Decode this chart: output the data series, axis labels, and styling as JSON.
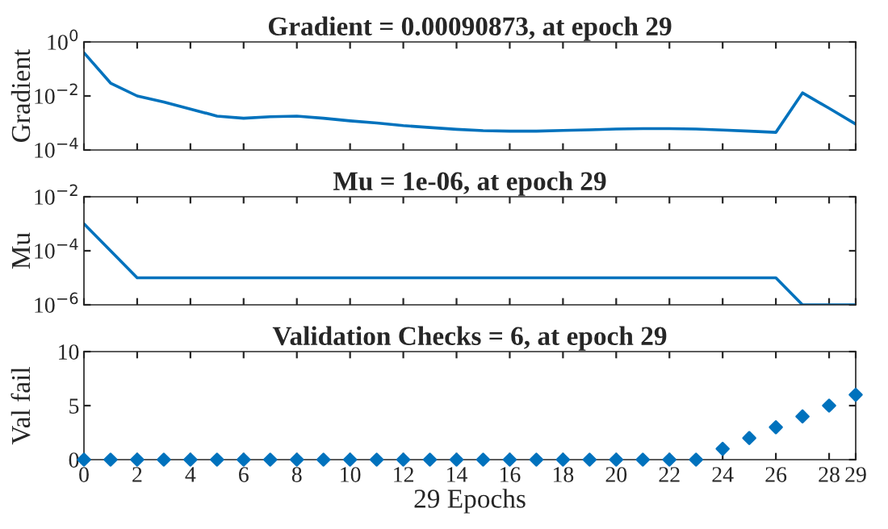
{
  "chart_data": [
    {
      "type": "line",
      "title": "Gradient = 0.00090873, at epoch 29",
      "ylabel": "Gradient",
      "log": "y",
      "grid": false,
      "tick_labels": "y",
      "marker": "none",
      "x": [
        0,
        1,
        2,
        3,
        4,
        5,
        6,
        7,
        8,
        9,
        10,
        11,
        12,
        13,
        14,
        15,
        16,
        17,
        18,
        19,
        20,
        21,
        22,
        23,
        24,
        25,
        26,
        27,
        28,
        29
      ],
      "xlim": [
        0,
        29
      ],
      "xticks": [
        0,
        2,
        4,
        6,
        8,
        10,
        12,
        14,
        16,
        18,
        20,
        22,
        24,
        26,
        28,
        29
      ],
      "ylim": [
        0.0001,
        1
      ],
      "yticks": [
        {
          "value": 0.0001,
          "label": "10$^{−4}$"
        },
        {
          "value": 0.01,
          "label": "10$^{−2}$"
        },
        {
          "value": 1,
          "label": "10$^{0}$"
        }
      ],
      "series": [
        {
          "color": "#0072bd",
          "values": [
            0.4,
            0.03,
            0.01,
            0.006,
            0.0033,
            0.0018,
            0.0015,
            0.0017,
            0.0018,
            0.0015,
            0.0012,
            0.001,
            0.0008,
            0.00068,
            0.00058,
            0.00052,
            0.0005,
            0.0005,
            0.00053,
            0.00056,
            0.0006,
            0.00062,
            0.00062,
            0.0006,
            0.00055,
            0.0005,
            0.00045,
            0.013,
            0.0035,
            0.00090873
          ]
        }
      ]
    },
    {
      "type": "line",
      "title": "Mu = 1e-06, at epoch 29",
      "ylabel": "Mu",
      "log": "y",
      "grid": false,
      "tick_labels": "y",
      "marker": "none",
      "x": [
        0,
        1,
        2,
        3,
        4,
        5,
        6,
        7,
        8,
        9,
        10,
        11,
        12,
        13,
        14,
        15,
        16,
        17,
        18,
        19,
        20,
        21,
        22,
        23,
        24,
        25,
        26,
        27,
        28,
        29
      ],
      "xlim": [
        0,
        29
      ],
      "xticks": [
        0,
        2,
        4,
        6,
        8,
        10,
        12,
        14,
        16,
        18,
        20,
        22,
        24,
        26,
        28,
        29
      ],
      "ylim": [
        1e-06,
        0.01
      ],
      "yticks": [
        {
          "value": 1e-06,
          "label": "10$^{−6}$"
        },
        {
          "value": 0.0001,
          "label": "10$^{−4}$"
        },
        {
          "value": 0.01,
          "label": "10$^{−2}$"
        }
      ],
      "series": [
        {
          "color": "#0072bd",
          "values": [
            0.001,
            0.0001,
            1e-05,
            1e-05,
            1e-05,
            1e-05,
            1e-05,
            1e-05,
            1e-05,
            1e-05,
            1e-05,
            1e-05,
            1e-05,
            1e-05,
            1e-05,
            1e-05,
            1e-05,
            1e-05,
            1e-05,
            1e-05,
            1e-05,
            1e-05,
            1e-05,
            1e-05,
            1e-05,
            1e-05,
            1e-05,
            1e-06,
            1e-06,
            1e-06
          ]
        }
      ]
    },
    {
      "type": "scatter",
      "title": "Validation Checks = 6, at epoch 29",
      "ylabel": "Val fail",
      "xlabel": "29 Epochs",
      "grid": false,
      "marker": "diamond",
      "x": [
        0,
        1,
        2,
        3,
        4,
        5,
        6,
        7,
        8,
        9,
        10,
        11,
        12,
        13,
        14,
        15,
        16,
        17,
        18,
        19,
        20,
        21,
        22,
        23,
        24,
        25,
        26,
        27,
        28,
        29
      ],
      "xlim": [
        0,
        29
      ],
      "xticks": [
        0,
        2,
        4,
        6,
        8,
        10,
        12,
        14,
        16,
        18,
        20,
        22,
        24,
        26,
        28,
        29
      ],
      "ylim": [
        0,
        10
      ],
      "yticks": [
        0,
        5,
        10
      ],
      "series": [
        {
          "color": "#0072bd",
          "values": [
            0,
            0,
            0,
            0,
            0,
            0,
            0,
            0,
            0,
            0,
            0,
            0,
            0,
            0,
            0,
            0,
            0,
            0,
            0,
            0,
            0,
            0,
            0,
            0,
            1,
            2,
            3,
            4,
            5,
            6
          ]
        }
      ]
    }
  ]
}
